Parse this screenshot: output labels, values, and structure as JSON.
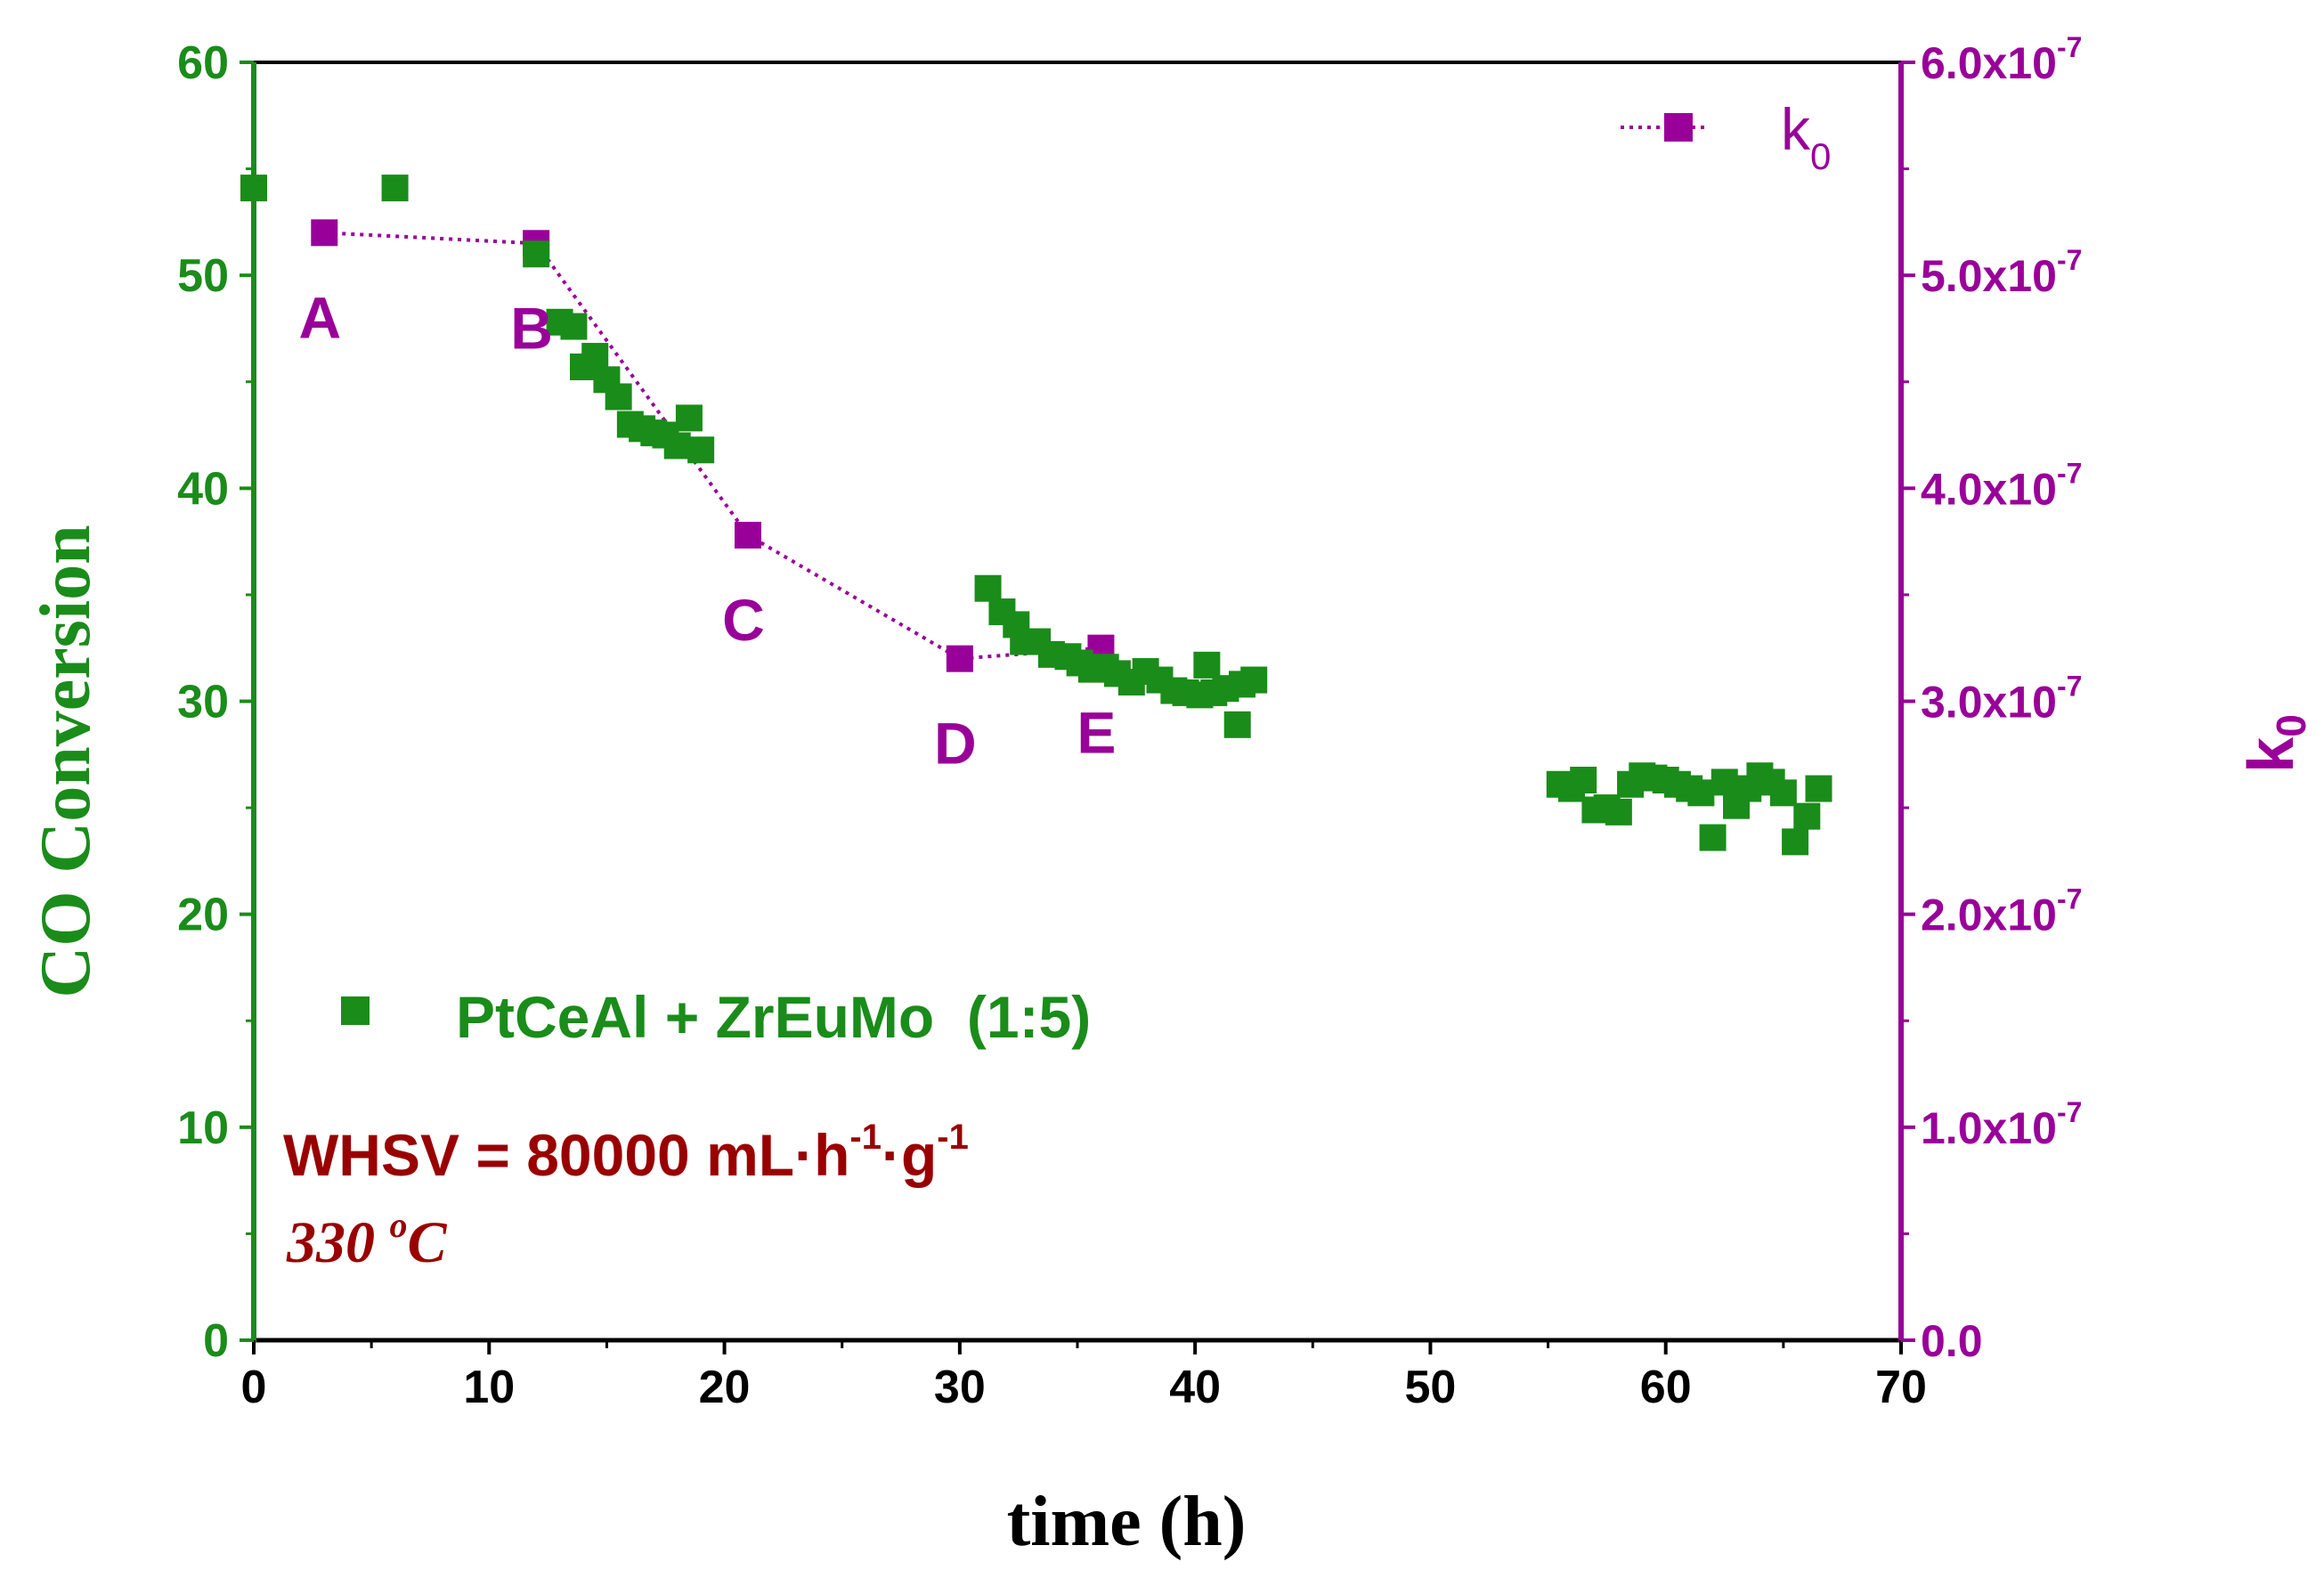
{
  "chart_data": {
    "type": "scatter",
    "xlabel": "time (h)",
    "ylabel_left": "CO Conversion",
    "ylabel_right_base": "k",
    "ylabel_right_sub": "0",
    "xlim": [
      0,
      70
    ],
    "ylim_left": [
      0,
      60
    ],
    "ylim_right": [
      0,
      6e-07
    ],
    "x_ticks": [
      "0",
      "10",
      "20",
      "30",
      "40",
      "50",
      "60",
      "70"
    ],
    "y_left_ticks": [
      "0",
      "10",
      "20",
      "30",
      "40",
      "50",
      "60"
    ],
    "y_right_ticks": [
      {
        "mant": "0.0",
        "exp": ""
      },
      {
        "mant": "1.0x10",
        "exp": "-7"
      },
      {
        "mant": "2.0x10",
        "exp": "-7"
      },
      {
        "mant": "3.0x10",
        "exp": "-7"
      },
      {
        "mant": "4.0x10",
        "exp": "-7"
      },
      {
        "mant": "5.0x10",
        "exp": "-7"
      },
      {
        "mant": "6.0x10",
        "exp": "-7"
      }
    ],
    "colors": {
      "conversion": "#1a8c1a",
      "k0": "#990099",
      "annotation": "#990000",
      "axis": "#000000"
    },
    "series": [
      {
        "name": "PtCeAl + ZrEuMo  (1:5)",
        "axis": "left",
        "points": [
          [
            0,
            54.1
          ],
          [
            6,
            54.1
          ],
          [
            12,
            51.0
          ],
          [
            13,
            47.8
          ],
          [
            13.6,
            47.6
          ],
          [
            14,
            45.7
          ],
          [
            14.5,
            46.2
          ],
          [
            15,
            45.1
          ],
          [
            15.5,
            44.3
          ],
          [
            16,
            43.0
          ],
          [
            16.5,
            42.8
          ],
          [
            17,
            42.6
          ],
          [
            17.5,
            42.5
          ],
          [
            18,
            42.0
          ],
          [
            18.5,
            43.3
          ],
          [
            19,
            41.8
          ],
          [
            31.2,
            35.3
          ],
          [
            31.8,
            34.2
          ],
          [
            32.4,
            33.6
          ],
          [
            32.7,
            32.8
          ],
          [
            33.3,
            32.8
          ],
          [
            33.9,
            32.2
          ],
          [
            34.6,
            32.1
          ],
          [
            35.1,
            31.8
          ],
          [
            35.6,
            31.5
          ],
          [
            36.2,
            31.6
          ],
          [
            36.7,
            31.3
          ],
          [
            37.3,
            30.9
          ],
          [
            37.9,
            31.4
          ],
          [
            38.5,
            31.0
          ],
          [
            39.1,
            30.5
          ],
          [
            39.6,
            30.4
          ],
          [
            40.2,
            30.3
          ],
          [
            40.5,
            31.7
          ],
          [
            40.8,
            30.4
          ],
          [
            41.3,
            30.6
          ],
          [
            41.8,
            28.9
          ],
          [
            42.0,
            30.8
          ],
          [
            42.5,
            31.0
          ],
          [
            55.5,
            26.1
          ],
          [
            56.0,
            25.9
          ],
          [
            56.5,
            26.3
          ],
          [
            57.0,
            24.9
          ],
          [
            57.5,
            25.0
          ],
          [
            58.0,
            24.8
          ],
          [
            58.5,
            26.1
          ],
          [
            59.0,
            26.5
          ],
          [
            59.5,
            26.4
          ],
          [
            60.0,
            26.3
          ],
          [
            60.5,
            26.1
          ],
          [
            61.0,
            25.9
          ],
          [
            61.5,
            25.7
          ],
          [
            62.0,
            23.6
          ],
          [
            62.5,
            26.2
          ],
          [
            63.0,
            25.1
          ],
          [
            63.5,
            25.9
          ],
          [
            64.0,
            26.5
          ],
          [
            64.5,
            26.2
          ],
          [
            65.0,
            25.7
          ],
          [
            65.5,
            23.4
          ],
          [
            66.0,
            24.6
          ],
          [
            66.5,
            25.9
          ]
        ]
      },
      {
        "name": "k0",
        "axis": "right",
        "style": "dotted-line-square",
        "points": [
          [
            3,
            5.2e-07
          ],
          [
            12,
            5.15e-07
          ],
          [
            21,
            3.78e-07
          ],
          [
            30,
            3.2e-07
          ],
          [
            36,
            3.25e-07
          ]
        ]
      }
    ],
    "point_labels": [
      {
        "text": "A",
        "x": 3
      },
      {
        "text": "B",
        "x": 12
      },
      {
        "text": "C",
        "x": 21
      },
      {
        "text": "D",
        "x": 30
      },
      {
        "text": "E",
        "x": 36
      }
    ],
    "legend": {
      "conversion_label": "PtCeAl + ZrEuMo  (1:5)",
      "k0_base": "k",
      "k0_sub": "0",
      "k0_position": "top-right",
      "conversion_position": "lower-left"
    },
    "annotations": {
      "whsv_prefix": "WHSV = 80000 mL·h",
      "whsv_exp1": "-1",
      "whsv_mid": "·g",
      "whsv_exp2": "-1",
      "temp_value": "330 ",
      "temp_sup": "o",
      "temp_unit": "C"
    }
  }
}
